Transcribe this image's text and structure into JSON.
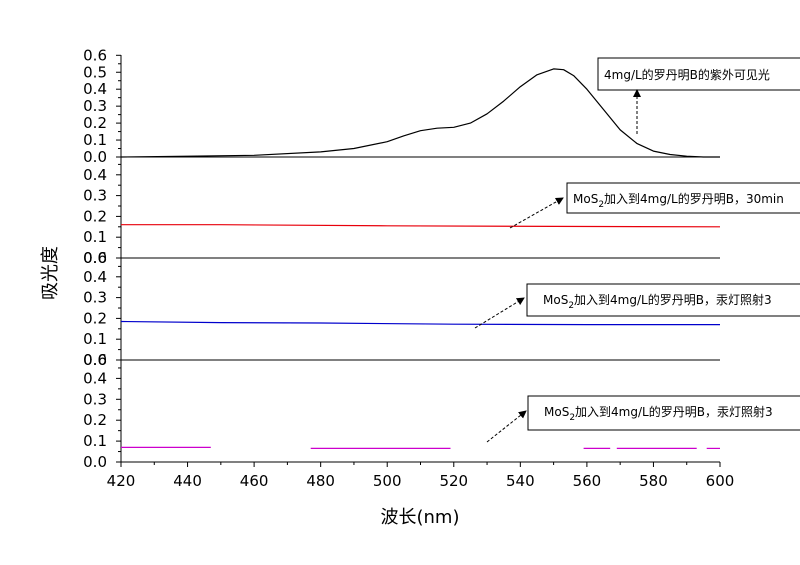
{
  "chart_data": {
    "type": "line",
    "layout": "stacked-panels",
    "xlabel": "波长(nm)",
    "ylabel": "吸光度",
    "xlim": [
      420,
      600
    ],
    "x_ticks": [
      420,
      440,
      460,
      480,
      500,
      520,
      540,
      560,
      580,
      600
    ],
    "panels": [
      {
        "id": "p1",
        "ylim": [
          0,
          0.6
        ],
        "y_ticks": [
          "0.6",
          "0.5",
          "0.4",
          "0.3",
          "0.2",
          "0.1",
          "0.0"
        ],
        "series": [
          {
            "color": "#000000",
            "x": [
              420,
              440,
              460,
              480,
              490,
              500,
              505,
              510,
              515,
              520,
              525,
              530,
              535,
              540,
              545,
              550,
              553,
              556,
              560,
              565,
              570,
              575,
              580,
              585,
              590,
              595,
              600
            ],
            "y": [
              0.0,
              0.005,
              0.01,
              0.03,
              0.05,
              0.09,
              0.125,
              0.155,
              0.17,
              0.175,
              0.2,
              0.255,
              0.33,
              0.415,
              0.485,
              0.52,
              0.515,
              0.48,
              0.4,
              0.28,
              0.16,
              0.08,
              0.035,
              0.015,
              0.005,
              0.0,
              0.0
            ]
          }
        ],
        "annotation": {
          "text": "4mg/L的罗丹明B的紫外可见光"
        }
      },
      {
        "id": "p2",
        "ylim": [
          0,
          0.5
        ],
        "y_ticks": [
          "0.4",
          "0.3",
          "0.2",
          "0.1",
          "0.0"
        ],
        "series": [
          {
            "color": "#e8000b",
            "x": [
              420,
              450,
              500,
              550,
              600
            ],
            "y": [
              0.16,
              0.16,
              0.155,
              0.152,
              0.15
            ]
          }
        ],
        "annotation": {
          "text_prefix": "MoS",
          "text_sub": "2",
          "text_suffix": "加入到4mg/L的罗丹明B，30min"
        }
      },
      {
        "id": "p3",
        "ylim": [
          0,
          0.5
        ],
        "y_ticks": [
          "0.6",
          "0.4",
          "0.3",
          "0.2",
          "0.1",
          "0.0"
        ],
        "series": [
          {
            "color": "#0000cc",
            "x": [
              420,
              450,
              480,
              520,
              560,
              600
            ],
            "y": [
              0.185,
              0.18,
              0.178,
              0.172,
              0.17,
              0.17
            ]
          }
        ],
        "annotation": {
          "text_prefix": "MoS",
          "text_sub": "2",
          "text_suffix": "加入到4mg/L的罗丹明B，汞灯照射3"
        }
      },
      {
        "id": "p4",
        "ylim": [
          0,
          0.5
        ],
        "y_ticks": [
          "0.6",
          "0.4",
          "0.3",
          "0.2",
          "0.1",
          "0.0"
        ],
        "series": [
          {
            "color": "#cc00cc",
            "segments": [
              {
                "x": [
                  420,
                  447
                ],
                "y": [
                  0.07,
                  0.07
                ]
              },
              {
                "x": [
                  477,
                  519
                ],
                "y": [
                  0.065,
                  0.065
                ]
              },
              {
                "x": [
                  559,
                  567
                ],
                "y": [
                  0.065,
                  0.065
                ]
              },
              {
                "x": [
                  569,
                  593
                ],
                "y": [
                  0.065,
                  0.065
                ]
              },
              {
                "x": [
                  596,
                  600
                ],
                "y": [
                  0.065,
                  0.065
                ]
              }
            ]
          }
        ],
        "annotation": {
          "text_prefix": "MoS",
          "text_sub": "2",
          "text_suffix": "加入到4mg/L的罗丹明B，汞灯照射3"
        }
      }
    ]
  }
}
